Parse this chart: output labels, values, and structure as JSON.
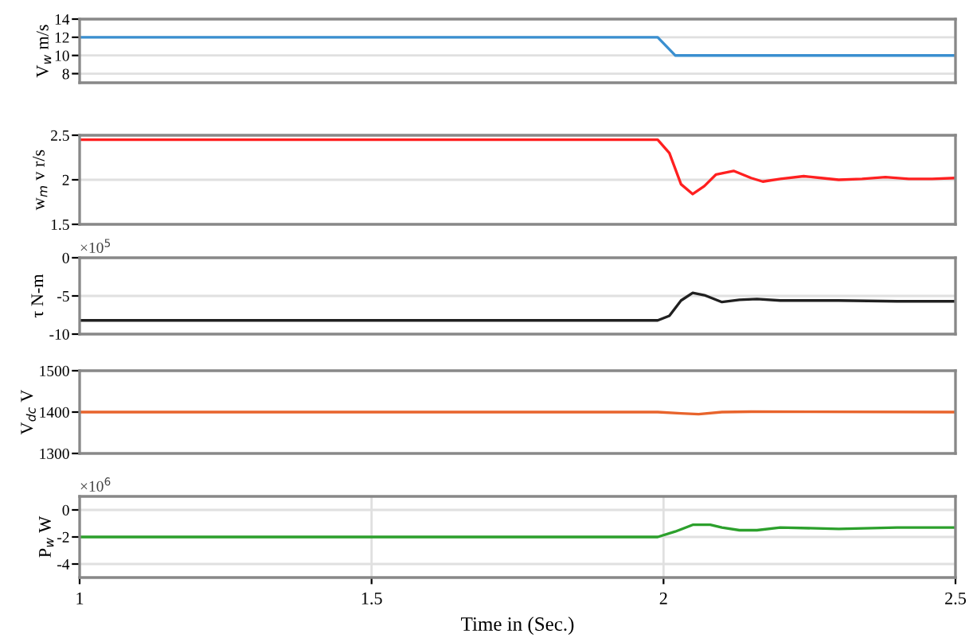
{
  "chart_data": [
    {
      "type": "line",
      "ylabel": "V$_{w}$ m/s",
      "x": [
        1,
        1.99,
        2.02,
        2.5
      ],
      "series": [
        {
          "color": "#3a8fd0",
          "values": [
            12,
            12,
            10,
            10
          ]
        }
      ],
      "xlim": [
        1,
        2.5
      ],
      "xticks": [
        1,
        1.5,
        2,
        2.5
      ],
      "ylim": [
        7,
        14
      ],
      "yticks": [
        8,
        10,
        12,
        14
      ],
      "tick_labels": "y",
      "grid": "y"
    },
    {
      "type": "line",
      "ylabel": "w$_{m}$ v r/s",
      "x": [
        1,
        1.99,
        2.01,
        2.03,
        2.05,
        2.07,
        2.09,
        2.12,
        2.15,
        2.17,
        2.2,
        2.24,
        2.27,
        2.3,
        2.34,
        2.38,
        2.42,
        2.46,
        2.5
      ],
      "series": [
        {
          "color": "#ff2020",
          "values": [
            2.45,
            2.45,
            2.3,
            1.95,
            1.84,
            1.93,
            2.06,
            2.1,
            2.02,
            1.98,
            2.01,
            2.04,
            2.02,
            2.0,
            2.01,
            2.03,
            2.01,
            2.01,
            2.02
          ]
        }
      ],
      "xlim": [
        1,
        2.5
      ],
      "xticks": [
        1,
        1.5,
        2,
        2.5
      ],
      "ylim": [
        1.5,
        2.5
      ],
      "yticks": [
        1.5,
        2,
        2.5
      ],
      "tick_labels": "y",
      "grid": "y"
    },
    {
      "type": "line",
      "ylabel": "τ N-m",
      "annotations": [
        "×10$^{5}$"
      ],
      "x": [
        1,
        1.99,
        2.01,
        2.03,
        2.05,
        2.07,
        2.1,
        2.13,
        2.16,
        2.2,
        2.3,
        2.4,
        2.5
      ],
      "series": [
        {
          "color": "#202020",
          "values": [
            -8.2,
            -8.2,
            -7.6,
            -5.6,
            -4.6,
            -4.9,
            -5.8,
            -5.5,
            -5.4,
            -5.6,
            -5.6,
            -5.7,
            -5.7
          ]
        }
      ],
      "xlim": [
        1,
        2.5
      ],
      "xticks": [
        1,
        1.5,
        2,
        2.5
      ],
      "ylim": [
        -10,
        0
      ],
      "yticks": [
        0,
        -5,
        -10
      ],
      "tick_labels": "y",
      "grid": "y"
    },
    {
      "type": "line",
      "ylabel": "V$_{dc}$ V",
      "x": [
        1,
        1.99,
        2.03,
        2.06,
        2.1,
        2.15,
        2.5
      ],
      "series": [
        {
          "color": "#e8642c",
          "values": [
            1400,
            1400,
            1397,
            1395,
            1400,
            1401,
            1400
          ]
        }
      ],
      "xlim": [
        1,
        2.5
      ],
      "xticks": [
        1,
        1.5,
        2,
        2.5
      ],
      "ylim": [
        1300,
        1500
      ],
      "yticks": [
        1300,
        1400,
        1500
      ],
      "tick_labels": "y",
      "grid": false
    },
    {
      "type": "line",
      "ylabel": "P$_{w}$ W",
      "xlabel": "Time in (Sec.)",
      "annotations": [
        "×10$^{6}$"
      ],
      "x": [
        1,
        1.99,
        2.02,
        2.05,
        2.08,
        2.1,
        2.13,
        2.16,
        2.2,
        2.3,
        2.4,
        2.5
      ],
      "series": [
        {
          "color": "#2ca02c",
          "values": [
            -2,
            -2,
            -1.6,
            -1.1,
            -1.1,
            -1.3,
            -1.5,
            -1.5,
            -1.3,
            -1.4,
            -1.3,
            -1.3
          ]
        }
      ],
      "xlim": [
        1,
        2.5
      ],
      "xticks": [
        1,
        1.5,
        2,
        2.5
      ],
      "ylim": [
        -5,
        1
      ],
      "yticks": [
        0,
        -2,
        -4
      ],
      "grid": true
    }
  ]
}
